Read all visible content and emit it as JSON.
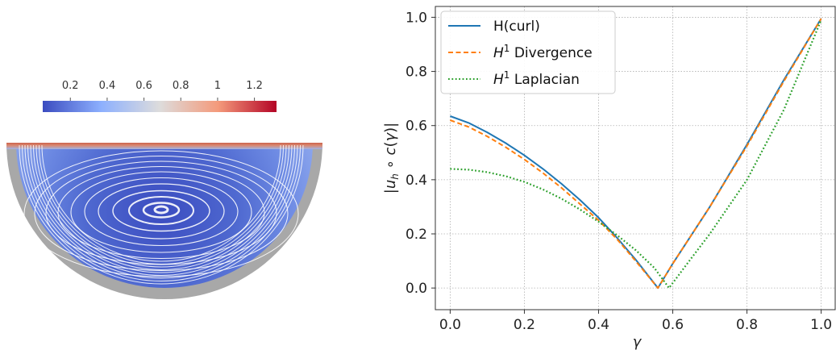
{
  "colorbar": {
    "ticks": [
      "0.2",
      "0.4",
      "0.6",
      "0.8",
      "1",
      "1.2"
    ],
    "tick_values": [
      0.2,
      0.4,
      0.6,
      0.8,
      1.0,
      1.2
    ],
    "range": [
      0.05,
      1.32
    ],
    "colors": [
      "#3b4cc0",
      "#8db0fe",
      "#dddcdc",
      "#f49a7b",
      "#b40426"
    ]
  },
  "chart_data": {
    "type": "line",
    "xlabel": "γ",
    "ylabel": "|u_h ∘ c(γ)|",
    "xlim": [
      -0.04,
      1.04
    ],
    "ylim": [
      -0.08,
      1.04
    ],
    "xticks": [
      0.0,
      0.2,
      0.4,
      0.6,
      0.8,
      1.0
    ],
    "yticks": [
      0.0,
      0.2,
      0.4,
      0.6,
      0.8,
      1.0
    ],
    "xtick_labels": [
      "0.0",
      "0.2",
      "0.4",
      "0.6",
      "0.8",
      "1.0"
    ],
    "ytick_labels": [
      "0.0",
      "0.2",
      "0.4",
      "0.6",
      "0.8",
      "1.0"
    ],
    "grid": true,
    "legend_position": "top-left",
    "series": [
      {
        "name": "H(curl)",
        "color": "#1f77b4",
        "style": "solid",
        "x": [
          0.0,
          0.05,
          0.1,
          0.15,
          0.2,
          0.25,
          0.3,
          0.35,
          0.4,
          0.45,
          0.5,
          0.56,
          0.6,
          0.7,
          0.8,
          0.9,
          1.0
        ],
        "y": [
          0.635,
          0.61,
          0.575,
          0.535,
          0.49,
          0.44,
          0.385,
          0.325,
          0.26,
          0.185,
          0.105,
          0.0,
          0.09,
          0.3,
          0.53,
          0.77,
          0.995
        ]
      },
      {
        "name": "H^1 Divergence",
        "color": "#ff7f0e",
        "style": "dashed",
        "x": [
          0.0,
          0.05,
          0.1,
          0.15,
          0.2,
          0.25,
          0.3,
          0.35,
          0.4,
          0.45,
          0.5,
          0.56,
          0.6,
          0.7,
          0.8,
          0.9,
          1.0
        ],
        "y": [
          0.62,
          0.595,
          0.56,
          0.52,
          0.475,
          0.425,
          0.37,
          0.31,
          0.25,
          0.18,
          0.1,
          0.0,
          0.09,
          0.3,
          0.525,
          0.765,
          0.995
        ]
      },
      {
        "name": "H^1 Laplacian",
        "color": "#2ca02c",
        "style": "dotted",
        "x": [
          0.0,
          0.05,
          0.1,
          0.15,
          0.2,
          0.25,
          0.3,
          0.35,
          0.4,
          0.45,
          0.5,
          0.55,
          0.59,
          0.65,
          0.7,
          0.8,
          0.9,
          1.0
        ],
        "y": [
          0.44,
          0.437,
          0.428,
          0.413,
          0.392,
          0.364,
          0.33,
          0.29,
          0.245,
          0.195,
          0.14,
          0.075,
          0.0,
          0.11,
          0.2,
          0.4,
          0.66,
          0.99
        ]
      }
    ]
  }
}
